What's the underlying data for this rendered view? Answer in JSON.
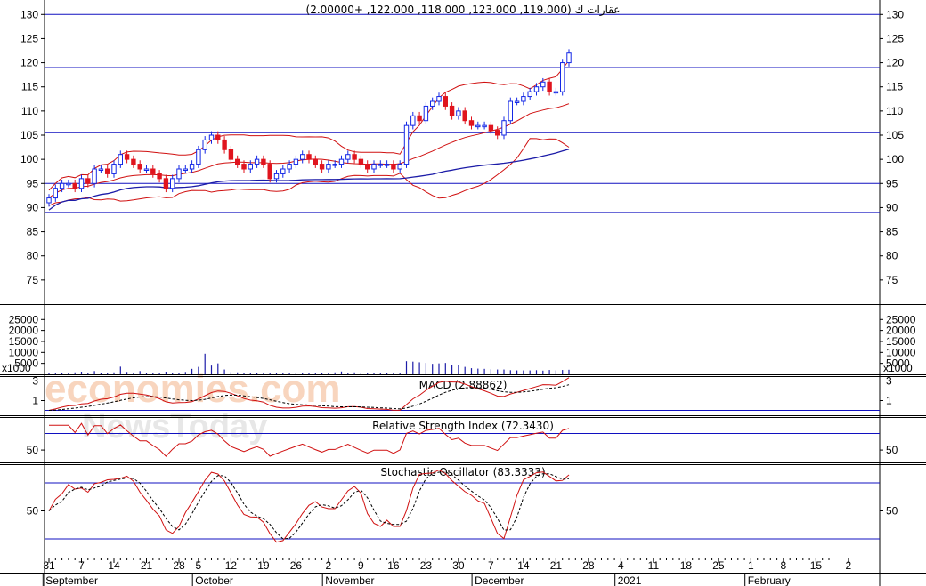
{
  "watermark": {
    "line1": "economies.com",
    "line2": "NewsToday"
  },
  "colors": {
    "up": "#1428e6",
    "down": "#e0141e",
    "band": "#d01010",
    "ma": "#1c1ca8",
    "grid": "#1010c0",
    "signal": "#000000"
  },
  "chart_data": [
    {
      "type": "candlestick",
      "name": "price",
      "title": "عقارات ك (119.000, 123.000, 118.000, 122.000, +2.00000)",
      "ylim": [
        70,
        133
      ],
      "yticks": [
        75,
        80,
        85,
        90,
        95,
        100,
        105,
        110,
        115,
        120,
        125,
        130
      ],
      "hlines": [
        130,
        119,
        105.5,
        95,
        89
      ],
      "close": [
        92,
        94,
        95,
        95,
        94,
        96,
        95,
        98,
        98,
        97,
        99,
        101,
        100,
        99,
        98,
        98,
        97,
        96,
        94,
        96,
        98,
        98,
        99,
        102,
        104,
        105,
        104,
        102,
        100,
        99,
        98,
        99,
        100,
        99,
        96,
        97,
        98,
        99,
        100,
        101,
        100,
        99,
        98,
        99,
        99,
        100,
        101,
        100,
        99,
        98,
        99,
        99,
        99,
        98,
        99,
        107,
        109,
        108,
        111,
        112,
        113,
        111,
        109,
        110,
        108,
        107,
        107,
        107,
        106,
        105,
        108,
        112,
        112,
        113,
        114,
        115,
        116,
        114,
        114,
        120,
        122
      ],
      "volume_ylim": [
        0,
        32000
      ],
      "volume_yticks": [
        5000,
        10000,
        15000,
        20000,
        25000
      ],
      "volume_unit": "x1000",
      "volume": [
        600,
        800,
        500,
        700,
        900,
        1200,
        600,
        1500,
        700,
        500,
        900,
        3500,
        1100,
        700,
        1500,
        800,
        600,
        500,
        1200,
        500,
        800,
        1100,
        2500,
        3400,
        9400,
        4000,
        5000,
        2200,
        1000,
        900,
        600,
        800,
        700,
        500,
        600,
        500,
        700,
        600,
        800,
        700,
        600,
        500,
        700,
        500,
        900,
        1300,
        700,
        900,
        600,
        500,
        600,
        700,
        600,
        500,
        800,
        6000,
        5800,
        5500,
        5200,
        4800,
        5000,
        5200,
        4400,
        4200,
        3400,
        2800,
        2600,
        2500,
        2300,
        2200,
        2200,
        1900,
        1800,
        1800,
        1800,
        1900,
        1700,
        2000,
        1800,
        2000,
        2100
      ]
    },
    {
      "type": "line",
      "name": "macd",
      "title": "MACD (2.88862)",
      "ylim": [
        -0.5,
        3.5
      ],
      "yticks": [
        1,
        3
      ],
      "hlines": [
        0
      ]
    },
    {
      "type": "line",
      "name": "rsi",
      "title": "Relative Strength Index (72.3430)",
      "ylim": [
        35,
        90
      ],
      "yticks": [
        50
      ],
      "hlines": [
        70
      ]
    },
    {
      "type": "line",
      "name": "stochastic",
      "title": "Stochastic Oscillator (83.3333)",
      "ylim": [
        0,
        100
      ],
      "yticks": [
        50
      ],
      "hlines": [
        80,
        20
      ]
    }
  ],
  "x_axis": {
    "day_labels": [
      {
        "label": "31",
        "i": 0
      },
      {
        "label": "7",
        "i": 5
      },
      {
        "label": "14",
        "i": 10
      },
      {
        "label": "21",
        "i": 15
      },
      {
        "label": "28",
        "i": 20
      },
      {
        "label": "5",
        "i": 23
      },
      {
        "label": "12",
        "i": 28
      },
      {
        "label": "19",
        "i": 33
      },
      {
        "label": "26",
        "i": 38
      },
      {
        "label": "2",
        "i": 43
      },
      {
        "label": "9",
        "i": 48
      },
      {
        "label": "16",
        "i": 53
      },
      {
        "label": "23",
        "i": 58
      },
      {
        "label": "30",
        "i": 63
      },
      {
        "label": "7",
        "i": 68
      },
      {
        "label": "14",
        "i": 73
      },
      {
        "label": "21",
        "i": 78
      },
      {
        "label": "28",
        "i": 83
      },
      {
        "label": "4",
        "i": 88
      },
      {
        "label": "11",
        "i": 93
      },
      {
        "label": "18",
        "i": 98
      },
      {
        "label": "25",
        "i": 103
      },
      {
        "label": "1",
        "i": 108
      },
      {
        "label": "8",
        "i": 113
      },
      {
        "label": "15",
        "i": 118
      },
      {
        "label": "2",
        "i": 123
      }
    ],
    "months": [
      {
        "label": "September",
        "i": 1
      },
      {
        "label": "October",
        "i": 24
      },
      {
        "label": "November",
        "i": 44
      },
      {
        "label": "December",
        "i": 67
      },
      {
        "label": "2021",
        "i": 89
      },
      {
        "label": "February",
        "i": 109
      }
    ]
  }
}
